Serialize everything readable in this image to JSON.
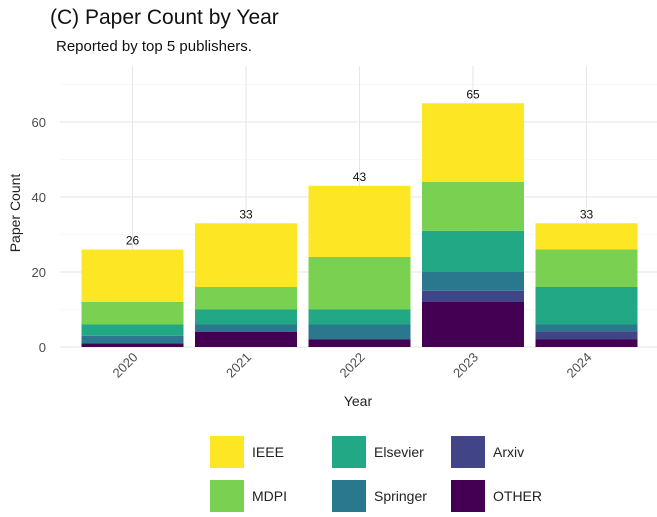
{
  "chart_data": {
    "type": "bar",
    "stacked": true,
    "title": "(C) Paper Count by Year",
    "subtitle": "Reported by top 5 publishers.",
    "xlabel": "Year",
    "ylabel": "Paper Count",
    "categories": [
      "2020",
      "2021",
      "2022",
      "2023",
      "2024"
    ],
    "ylim": [
      0,
      72
    ],
    "yticks": [
      0,
      20,
      40,
      60
    ],
    "grid": true,
    "legend_position": "bottom",
    "totals": [
      26,
      33,
      43,
      65,
      33
    ],
    "series": [
      {
        "name": "OTHER",
        "color": "#440154",
        "values": [
          1,
          4,
          2,
          12,
          2
        ]
      },
      {
        "name": "Arxiv",
        "color": "#414487",
        "values": [
          0,
          0,
          0,
          3,
          2
        ]
      },
      {
        "name": "Springer",
        "color": "#2A788E",
        "values": [
          2,
          2,
          4,
          5,
          2
        ]
      },
      {
        "name": "Elsevier",
        "color": "#22A884",
        "values": [
          3,
          4,
          4,
          11,
          10
        ]
      },
      {
        "name": "MDPI",
        "color": "#7AD151",
        "values": [
          6,
          6,
          14,
          13,
          10
        ]
      },
      {
        "name": "IEEE",
        "color": "#FDE725",
        "values": [
          14,
          17,
          19,
          21,
          7
        ]
      }
    ],
    "legend_order": [
      "IEEE",
      "Elsevier",
      "Arxiv",
      "MDPI",
      "Springer",
      "OTHER"
    ]
  }
}
